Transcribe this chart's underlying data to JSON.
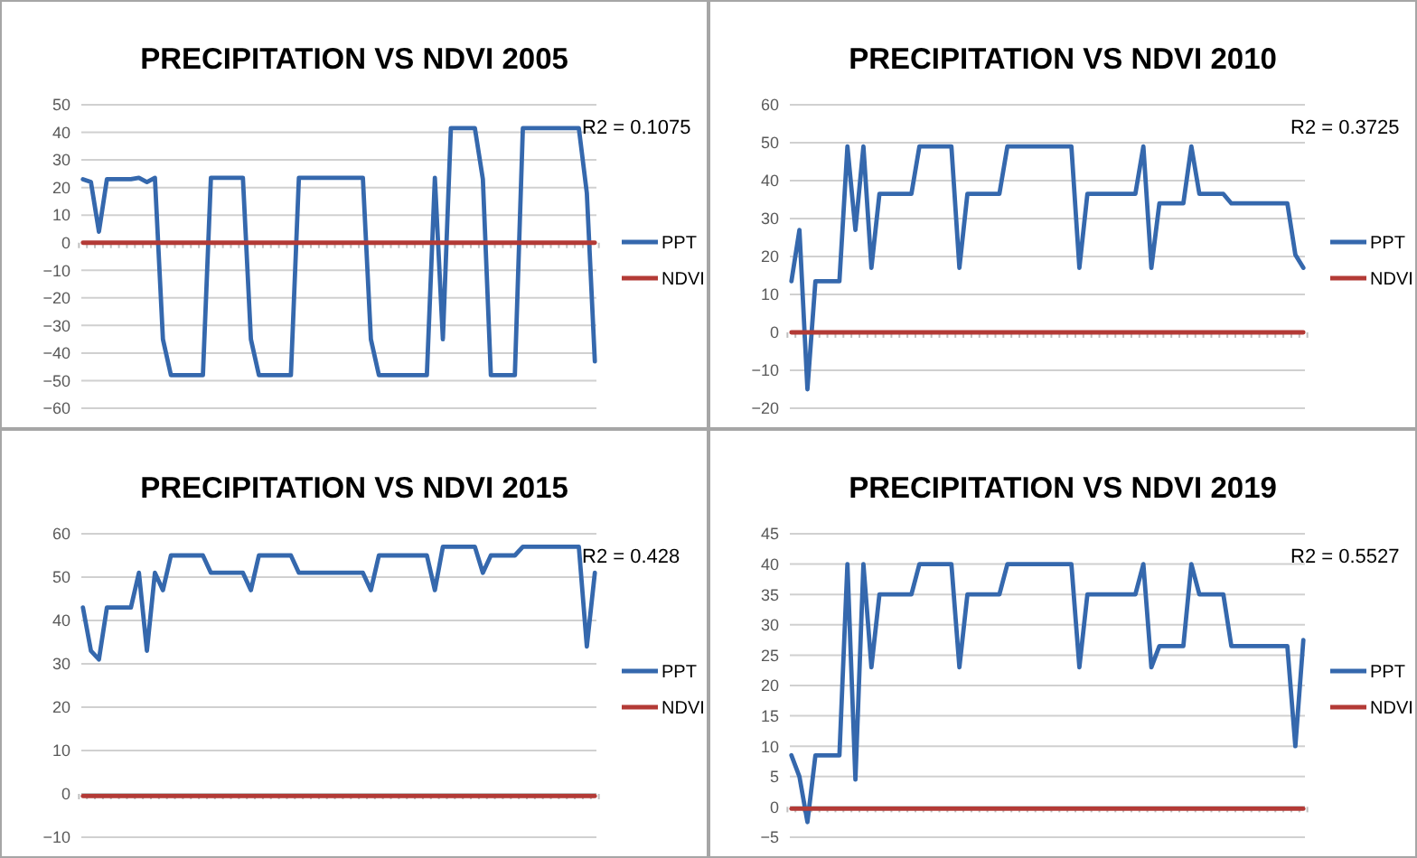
{
  "chart_data": [
    {
      "type": "line",
      "title": "PRECIPITATION VS NDVI 2005",
      "categories": [
        null,
        null,
        null,
        null,
        null,
        null,
        null,
        null,
        null,
        null,
        null,
        null,
        null,
        null,
        null,
        null,
        null,
        null,
        null,
        null,
        null,
        null,
        null,
        null,
        null,
        null,
        null,
        null,
        null,
        null,
        null,
        null,
        null,
        null,
        null,
        null,
        null,
        null,
        null,
        null,
        null,
        null,
        null,
        null,
        null,
        null,
        null,
        null,
        null,
        null,
        null,
        null,
        null,
        null,
        null,
        null,
        null,
        null,
        null,
        null,
        null,
        null,
        null,
        null,
        null
      ],
      "ylim": [
        -60,
        50
      ],
      "yticks": [
        -60,
        -50,
        -40,
        -30,
        -20,
        -10,
        0,
        10,
        20,
        30,
        40,
        50
      ],
      "grid": "y",
      "legend": "right",
      "annotations": [
        "R2 = 0.1075"
      ],
      "series": [
        {
          "name": "PPT",
          "color": "#3568ad",
          "values": [
            23,
            22,
            4,
            23,
            23,
            23,
            23,
            23.5,
            22,
            23.5,
            -35,
            -48,
            -48,
            -48,
            -48,
            -48,
            23.5,
            23.5,
            23.5,
            23.5,
            23.5,
            -35,
            -48,
            -48,
            -48,
            -48,
            -48,
            23.5,
            23.5,
            23.5,
            23.5,
            23.5,
            23.5,
            23.5,
            23.5,
            23.5,
            -35,
            -48,
            -48,
            -48,
            -48,
            -48,
            -48,
            -48,
            23.5,
            -35,
            41.5,
            41.5,
            41.5,
            41.5,
            23,
            -48,
            -48,
            -48,
            -48,
            41.5,
            41.5,
            41.5,
            41.5,
            41.5,
            41.5,
            41.5,
            41.5,
            18,
            -43
          ]
        },
        {
          "name": "NDVI",
          "color": "#b33a36",
          "values": [
            0,
            0,
            0,
            0,
            0,
            0,
            0,
            0,
            0,
            0,
            0,
            0,
            0,
            0,
            0,
            0,
            0,
            0,
            0,
            0,
            0,
            0,
            0,
            0,
            0,
            0,
            0,
            0,
            0,
            0,
            0,
            0,
            0,
            0,
            0,
            0,
            0,
            0,
            0,
            0,
            0,
            0,
            0,
            0,
            0,
            0,
            0,
            0,
            0,
            0,
            0,
            0,
            0,
            0,
            0,
            0,
            0,
            0,
            0,
            0,
            0,
            0,
            0,
            0,
            0
          ]
        }
      ]
    },
    {
      "type": "line",
      "title": "PRECIPITATION VS NDVI 2010",
      "categories": [
        null,
        null,
        null,
        null,
        null,
        null,
        null,
        null,
        null,
        null,
        null,
        null,
        null,
        null,
        null,
        null,
        null,
        null,
        null,
        null,
        null,
        null,
        null,
        null,
        null,
        null,
        null,
        null,
        null,
        null,
        null,
        null,
        null,
        null,
        null,
        null,
        null,
        null,
        null,
        null,
        null,
        null,
        null,
        null,
        null,
        null,
        null,
        null,
        null,
        null,
        null,
        null,
        null,
        null,
        null,
        null,
        null,
        null,
        null,
        null,
        null,
        null,
        null,
        null,
        null
      ],
      "ylim": [
        -20,
        60
      ],
      "yticks": [
        -20,
        -10,
        0,
        10,
        20,
        30,
        40,
        50,
        60
      ],
      "grid": "y",
      "legend": "right",
      "annotations": [
        "R2 = 0.3725"
      ],
      "series": [
        {
          "name": "PPT",
          "color": "#3568ad",
          "values": [
            13.5,
            27,
            -15,
            13.5,
            13.5,
            13.5,
            13.5,
            49,
            27,
            49,
            17,
            36.5,
            36.5,
            36.5,
            36.5,
            36.5,
            49,
            49,
            49,
            49,
            49,
            17,
            36.5,
            36.5,
            36.5,
            36.5,
            36.5,
            49,
            49,
            49,
            49,
            49,
            49,
            49,
            49,
            49,
            17,
            36.5,
            36.5,
            36.5,
            36.5,
            36.5,
            36.5,
            36.5,
            49,
            17,
            34,
            34,
            34,
            34,
            49,
            36.5,
            36.5,
            36.5,
            36.5,
            34,
            34,
            34,
            34,
            34,
            34,
            34,
            34,
            20.5,
            17
          ]
        },
        {
          "name": "NDVI",
          "color": "#b33a36",
          "values": [
            0,
            0,
            0,
            0,
            0,
            0,
            0,
            0,
            0,
            0,
            0,
            0,
            0,
            0,
            0,
            0,
            0,
            0,
            0,
            0,
            0,
            0,
            0,
            0,
            0,
            0,
            0,
            0,
            0,
            0,
            0,
            0,
            0,
            0,
            0,
            0,
            0,
            0,
            0,
            0,
            0,
            0,
            0,
            0,
            0,
            0,
            0,
            0,
            0,
            0,
            0,
            0,
            0,
            0,
            0,
            0,
            0,
            0,
            0,
            0,
            0,
            0,
            0,
            0,
            0
          ]
        }
      ]
    },
    {
      "type": "line",
      "title": "PRECIPITATION VS NDVI 2015",
      "categories": [
        null,
        null,
        null,
        null,
        null,
        null,
        null,
        null,
        null,
        null,
        null,
        null,
        null,
        null,
        null,
        null,
        null,
        null,
        null,
        null,
        null,
        null,
        null,
        null,
        null,
        null,
        null,
        null,
        null,
        null,
        null,
        null,
        null,
        null,
        null,
        null,
        null,
        null,
        null,
        null,
        null,
        null,
        null,
        null,
        null,
        null,
        null,
        null,
        null,
        null,
        null,
        null,
        null,
        null,
        null,
        null,
        null,
        null,
        null,
        null,
        null,
        null,
        null,
        null,
        null
      ],
      "ylim": [
        -10,
        60
      ],
      "yticks": [
        -10,
        0,
        10,
        20,
        30,
        40,
        50,
        60
      ],
      "grid": "y",
      "legend": "right",
      "annotations": [
        "R2 = 0.428"
      ],
      "series": [
        {
          "name": "PPT",
          "color": "#3568ad",
          "values": [
            43,
            33,
            31,
            43,
            43,
            43,
            43,
            51,
            33,
            51,
            47,
            55,
            55,
            55,
            55,
            55,
            51,
            51,
            51,
            51,
            51,
            47,
            55,
            55,
            55,
            55,
            55,
            51,
            51,
            51,
            51,
            51,
            51,
            51,
            51,
            51,
            47,
            55,
            55,
            55,
            55,
            55,
            55,
            55,
            47,
            57,
            57,
            57,
            57,
            57,
            51,
            55,
            55,
            55,
            55,
            57,
            57,
            57,
            57,
            57,
            57,
            57,
            57,
            34,
            51
          ]
        },
        {
          "name": "NDVI",
          "color": "#b33a36",
          "values": [
            -0.5,
            -0.5,
            -0.5,
            -0.5,
            -0.5,
            -0.5,
            -0.5,
            -0.5,
            -0.5,
            -0.5,
            -0.5,
            -0.5,
            -0.5,
            -0.5,
            -0.5,
            -0.5,
            -0.5,
            -0.5,
            -0.5,
            -0.5,
            -0.5,
            -0.5,
            -0.5,
            -0.5,
            -0.5,
            -0.5,
            -0.5,
            -0.5,
            -0.5,
            -0.5,
            -0.5,
            -0.5,
            -0.5,
            -0.5,
            -0.5,
            -0.5,
            -0.5,
            -0.5,
            -0.5,
            -0.5,
            -0.5,
            -0.5,
            -0.5,
            -0.5,
            -0.5,
            -0.5,
            -0.5,
            -0.5,
            -0.5,
            -0.5,
            -0.5,
            -0.5,
            -0.5,
            -0.5,
            -0.5,
            -0.5,
            -0.5,
            -0.5,
            -0.5,
            -0.5,
            -0.5,
            -0.5,
            -0.5,
            -0.5,
            -0.5
          ]
        }
      ]
    },
    {
      "type": "line",
      "title": "PRECIPITATION VS NDVI 2019",
      "categories": [
        null,
        null,
        null,
        null,
        null,
        null,
        null,
        null,
        null,
        null,
        null,
        null,
        null,
        null,
        null,
        null,
        null,
        null,
        null,
        null,
        null,
        null,
        null,
        null,
        null,
        null,
        null,
        null,
        null,
        null,
        null,
        null,
        null,
        null,
        null,
        null,
        null,
        null,
        null,
        null,
        null,
        null,
        null,
        null,
        null,
        null,
        null,
        null,
        null,
        null,
        null,
        null,
        null,
        null,
        null,
        null,
        null,
        null,
        null,
        null,
        null,
        null,
        null,
        null,
        null
      ],
      "ylim": [
        -5,
        45
      ],
      "yticks": [
        -5,
        0,
        5,
        10,
        15,
        20,
        25,
        30,
        35,
        40,
        45
      ],
      "grid": "y",
      "legend": "right",
      "annotations": [
        "R2 = 0.5527"
      ],
      "series": [
        {
          "name": "PPT",
          "color": "#3568ad",
          "values": [
            8.5,
            5,
            -2.5,
            8.5,
            8.5,
            8.5,
            8.5,
            40,
            4.5,
            40,
            23,
            35,
            35,
            35,
            35,
            35,
            40,
            40,
            40,
            40,
            40,
            23,
            35,
            35,
            35,
            35,
            35,
            40,
            40,
            40,
            40,
            40,
            40,
            40,
            40,
            40,
            23,
            35,
            35,
            35,
            35,
            35,
            35,
            35,
            40,
            23,
            26.5,
            26.5,
            26.5,
            26.5,
            40,
            35,
            35,
            35,
            35,
            26.5,
            26.5,
            26.5,
            26.5,
            26.5,
            26.5,
            26.5,
            26.5,
            10,
            27.5
          ]
        },
        {
          "name": "NDVI",
          "color": "#b33a36",
          "values": [
            -0.3,
            -0.3,
            -0.3,
            -0.3,
            -0.3,
            -0.3,
            -0.3,
            -0.3,
            -0.3,
            -0.3,
            -0.3,
            -0.3,
            -0.3,
            -0.3,
            -0.3,
            -0.3,
            -0.3,
            -0.3,
            -0.3,
            -0.3,
            -0.3,
            -0.3,
            -0.3,
            -0.3,
            -0.3,
            -0.3,
            -0.3,
            -0.3,
            -0.3,
            -0.3,
            -0.3,
            -0.3,
            -0.3,
            -0.3,
            -0.3,
            -0.3,
            -0.3,
            -0.3,
            -0.3,
            -0.3,
            -0.3,
            -0.3,
            -0.3,
            -0.3,
            -0.3,
            -0.3,
            -0.3,
            -0.3,
            -0.3,
            -0.3,
            -0.3,
            -0.3,
            -0.3,
            -0.3,
            -0.3,
            -0.3,
            -0.3,
            -0.3,
            -0.3,
            -0.3,
            -0.3,
            -0.3,
            -0.3,
            -0.3,
            -0.3
          ]
        }
      ]
    }
  ]
}
